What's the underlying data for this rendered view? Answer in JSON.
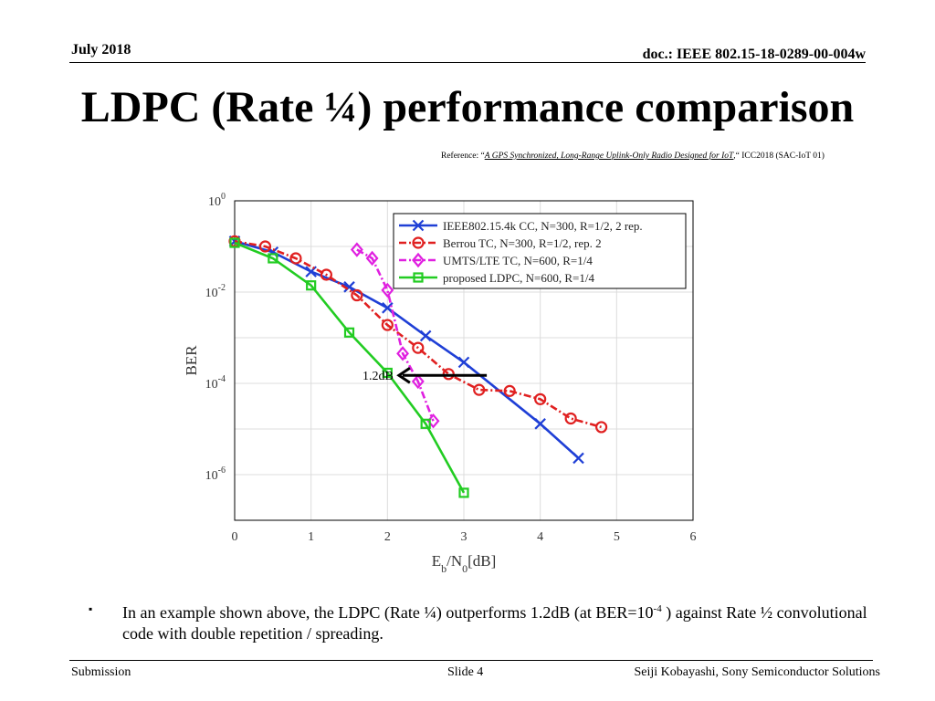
{
  "header": {
    "date": "July 2018",
    "doc": "doc.: IEEE 802.15-18-0289-00-004w"
  },
  "title": "LDPC (Rate ¼) performance comparison",
  "reference": {
    "prefix": "Reference: “",
    "paper": "A GPS Synchronized, Long-Range Uplink-Only Radio Designed for IoT",
    "mid": ",“ ",
    "venue": "ICC2018 (SAC-IoT 01)"
  },
  "chart_data": {
    "type": "line",
    "xlabel_main": "E",
    "xlabel_sub1": "b",
    "xlabel_mid": "/N",
    "xlabel_sub2": "0",
    "xlabel_end": "[dB]",
    "ylabel": "BER",
    "xlim": [
      0,
      6
    ],
    "ylim_log10": [
      -7,
      0
    ],
    "y_scale": "log",
    "grid": true,
    "legend_position": "top-right",
    "x_ticks": [
      "0",
      "1",
      "2",
      "3",
      "4",
      "5",
      "6"
    ],
    "y_ticks": [
      {
        "base": "10",
        "exp": "0"
      },
      {
        "base": "10",
        "exp": "-2"
      },
      {
        "base": "10",
        "exp": "-4"
      },
      {
        "base": "10",
        "exp": "-6"
      }
    ],
    "series": [
      {
        "name": "IEEE802.15.4k CC, N=300, R=1/2, 2 rep.",
        "color": "#1f3fd6",
        "marker": "x",
        "dash": "solid",
        "x": [
          0,
          0.5,
          1.0,
          1.5,
          2.0,
          2.5,
          3.0,
          4.0,
          4.5
        ],
        "y": [
          0.13,
          0.075,
          0.028,
          0.013,
          0.0045,
          0.0011,
          0.00029,
          1.3e-05,
          2.3e-06
        ]
      },
      {
        "name": "Berrou TC, N=300, R=1/2, rep. 2",
        "color": "#e02020",
        "marker": "o",
        "dash": "dashdot",
        "x": [
          0,
          0.4,
          0.8,
          1.2,
          1.6,
          2.0,
          2.4,
          2.8,
          3.2,
          3.6,
          4.0,
          4.4,
          4.8
        ],
        "y": [
          0.13,
          0.1,
          0.055,
          0.024,
          0.0085,
          0.0019,
          0.0006,
          0.00016,
          7.2e-05,
          6.8e-05,
          4.5e-05,
          1.7e-05,
          1.1e-05
        ]
      },
      {
        "name": "UMTS/LTE TC, N=600, R=1/4",
        "color": "#e020e0",
        "marker": "diamond",
        "dash": "dashdot",
        "x": [
          1.6,
          1.8,
          2.0,
          2.2,
          2.4,
          2.6
        ],
        "y": [
          0.085,
          0.055,
          0.011,
          0.00045,
          0.00011,
          1.5e-05
        ]
      },
      {
        "name": "proposed LDPC, N=600, R=1/4",
        "color": "#22cc22",
        "marker": "square",
        "dash": "solid",
        "x": [
          0,
          0.5,
          1.0,
          1.5,
          2.0,
          2.5,
          3.0
        ],
        "y": [
          0.12,
          0.055,
          0.014,
          0.0013,
          0.00017,
          1.3e-05,
          4e-07
        ]
      }
    ],
    "annotation": {
      "text": "1.2dB",
      "arrow_from": [
        3.3,
        0.00015
      ],
      "arrow_to": [
        2.15,
        0.00015
      ]
    }
  },
  "bullet": {
    "marker": "▪",
    "text_a": "In an example shown above, the LDPC (Rate ¼) outperforms 1.2dB (at BER=10",
    "sup": "-4",
    "text_b": " ) against Rate ½ convolutional code with double repetition / spreading."
  },
  "footer": {
    "left": "Submission",
    "middle": "Slide 4",
    "right": "Seiji Kobayashi, Sony Semiconductor Solutions"
  }
}
